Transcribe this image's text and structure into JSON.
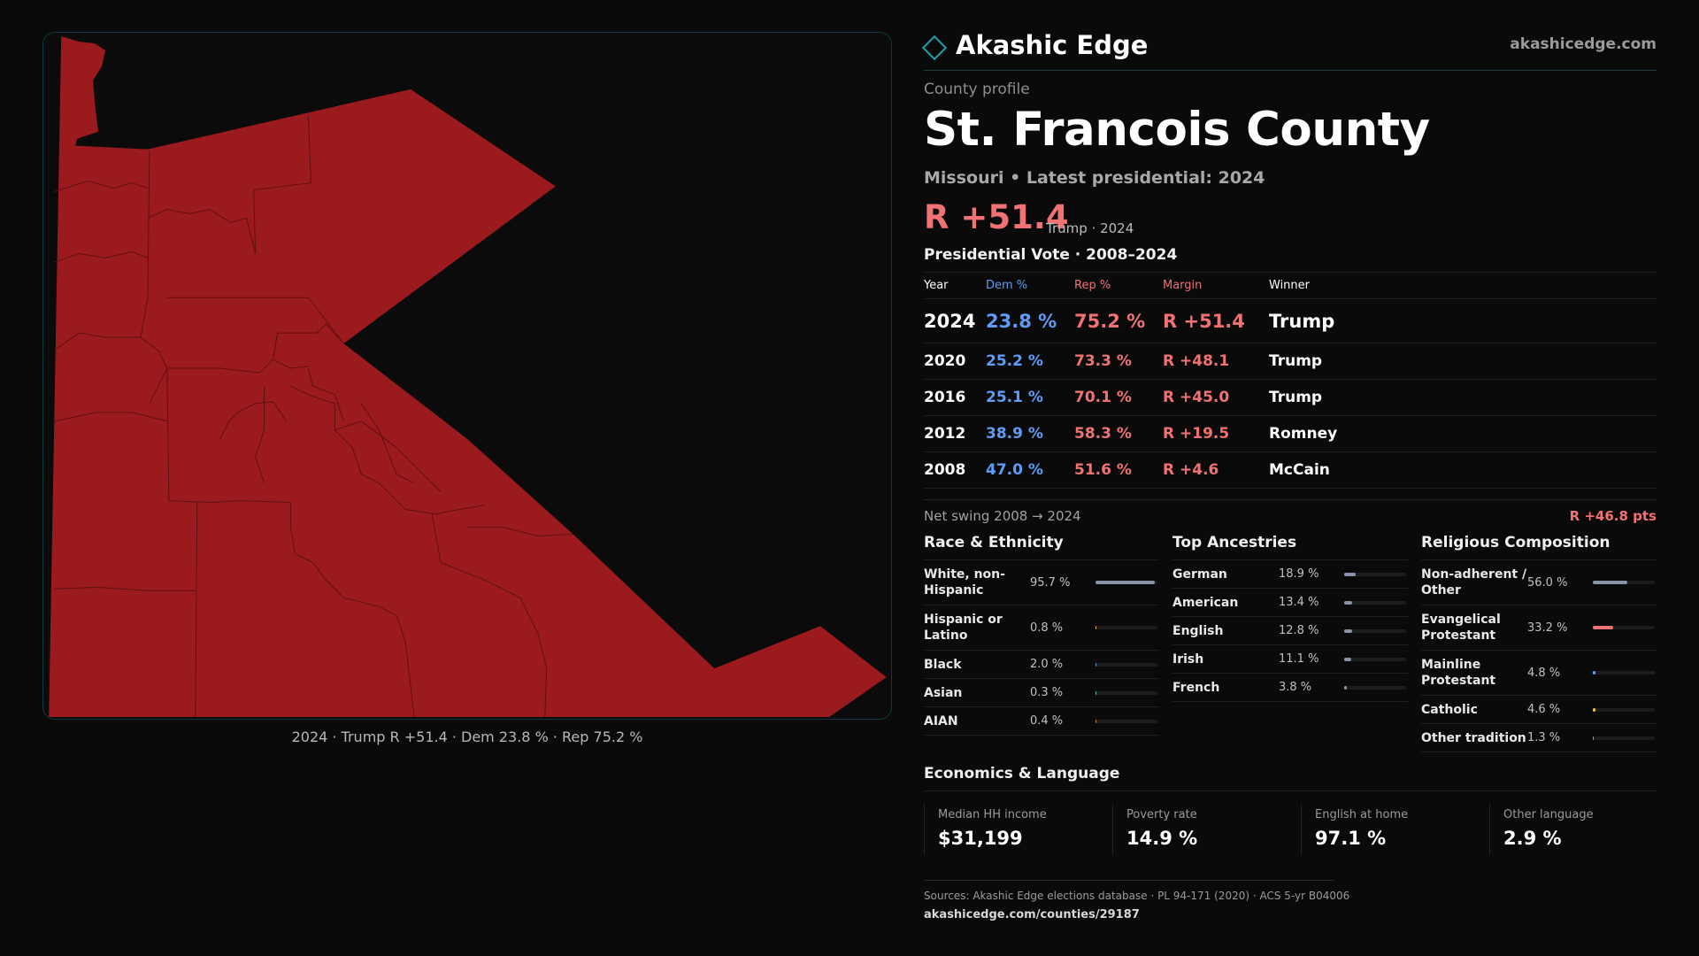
{
  "brand": {
    "name": "Akashic Edge",
    "url": "akashicedge.com",
    "logo_icon": "diamond-outline-icon",
    "accent": "#18a3a8"
  },
  "map": {
    "caption": "2024 · Trump R +51.4 · Dem 23.8 % · Rep 75.2 %",
    "fill_color": "#9b1a1d"
  },
  "profile": {
    "kicker": "County profile",
    "title": "St. Francois County",
    "subtitle": "Missouri • Latest presidential: 2024",
    "headline_margin": "R +51.4",
    "headline_note": "Trump · 2024"
  },
  "vote": {
    "title": "Presidential Vote · 2008–2024",
    "headers": {
      "year": "Year",
      "dem": "Dem %",
      "rep": "Rep %",
      "margin": "Margin",
      "winner": "Winner"
    },
    "rows": [
      {
        "year": "2024",
        "dem": "23.8 %",
        "rep": "75.2 %",
        "margin": "R +51.4",
        "winner": "Trump"
      },
      {
        "year": "2020",
        "dem": "25.2 %",
        "rep": "73.3 %",
        "margin": "R +48.1",
        "winner": "Trump"
      },
      {
        "year": "2016",
        "dem": "25.1 %",
        "rep": "70.1 %",
        "margin": "R +45.0",
        "winner": "Trump"
      },
      {
        "year": "2012",
        "dem": "38.9 %",
        "rep": "58.3 %",
        "margin": "R +19.5",
        "winner": "Romney"
      },
      {
        "year": "2008",
        "dem": "47.0 %",
        "rep": "51.6 %",
        "margin": "R +4.6",
        "winner": "McCain"
      }
    ],
    "swing_label": "Net swing 2008 → 2024",
    "swing_value": "R +46.8 pts"
  },
  "race": {
    "title": "Race & Ethnicity",
    "items": [
      {
        "label": "White, non-Hispanic",
        "value": "95.7 %",
        "pct": 95.7,
        "color": "#8892a8"
      },
      {
        "label": "Hispanic or Latino",
        "value": "0.8 %",
        "pct": 0.8,
        "color": "#e0a040"
      },
      {
        "label": "Black",
        "value": "2.0 %",
        "pct": 2.0,
        "color": "#6a8ff0"
      },
      {
        "label": "Asian",
        "value": "0.3 %",
        "pct": 0.3,
        "color": "#5cc0a0"
      },
      {
        "label": "AIAN",
        "value": "0.4 %",
        "pct": 0.4,
        "color": "#e07050"
      }
    ]
  },
  "ancestry": {
    "title": "Top Ancestries",
    "items": [
      {
        "label": "German",
        "value": "18.9 %",
        "pct": 18.9,
        "color": "#8892a8"
      },
      {
        "label": "American",
        "value": "13.4 %",
        "pct": 13.4,
        "color": "#8892a8"
      },
      {
        "label": "English",
        "value": "12.8 %",
        "pct": 12.8,
        "color": "#8892a8"
      },
      {
        "label": "Irish",
        "value": "11.1 %",
        "pct": 11.1,
        "color": "#8892a8"
      },
      {
        "label": "French",
        "value": "3.8 %",
        "pct": 3.8,
        "color": "#8892a8"
      }
    ]
  },
  "religion": {
    "title": "Religious Composition",
    "items": [
      {
        "label": "Non-adherent / Other",
        "value": "56.0 %",
        "pct": 56.0,
        "color": "#8892a8"
      },
      {
        "label": "Evangelical Protestant",
        "value": "33.2 %",
        "pct": 33.2,
        "color": "#f07272"
      },
      {
        "label": "Mainline Protestant",
        "value": "4.8 %",
        "pct": 4.8,
        "color": "#5e9cf5"
      },
      {
        "label": "Catholic",
        "value": "4.6 %",
        "pct": 4.6,
        "color": "#e8c040"
      },
      {
        "label": "Other tradition",
        "value": "1.3 %",
        "pct": 1.3,
        "color": "#9a9a9a"
      }
    ]
  },
  "econ": {
    "title": "Economics & Language",
    "items": [
      {
        "label": "Median HH income",
        "value": "$31,199"
      },
      {
        "label": "Poverty rate",
        "value": "14.9 %"
      },
      {
        "label": "English at home",
        "value": "97.1 %"
      },
      {
        "label": "Other language",
        "value": "2.9 %"
      }
    ]
  },
  "footer": {
    "sources": "Sources: Akashic Edge elections database · PL 94-171 (2020) · ACS 5-yr B04006",
    "url": "akashicedge.com/counties/29187"
  }
}
